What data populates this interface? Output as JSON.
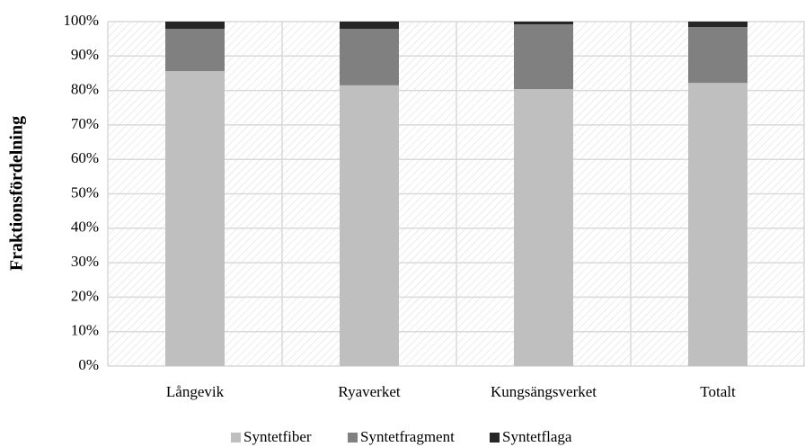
{
  "chart_data": {
    "type": "stacked_bar",
    "y_label": "Fraktionsfördelning",
    "categories": [
      "Långevik",
      "Ryaverket",
      "Kungsängsverket",
      "Totalt"
    ],
    "series": [
      {
        "name": "Syntetfiber",
        "color": "#bfbfbf",
        "values": [
          85.6,
          81.5,
          80.4,
          82.2
        ]
      },
      {
        "name": "Syntetfragment",
        "color": "#808080",
        "values": [
          12.3,
          16.4,
          18.8,
          16.2
        ]
      },
      {
        "name": "Syntetflaga",
        "color": "#262626",
        "values": [
          2.1,
          2.1,
          0.8,
          1.6
        ]
      }
    ],
    "ylim": [
      0,
      100
    ],
    "yticks": [
      {
        "value": 0,
        "label": "0%"
      },
      {
        "value": 10,
        "label": "10%"
      },
      {
        "value": 20,
        "label": "20%"
      },
      {
        "value": 30,
        "label": "30%"
      },
      {
        "value": 40,
        "label": "40%"
      },
      {
        "value": 50,
        "label": "50%"
      },
      {
        "value": 60,
        "label": "60%"
      },
      {
        "value": 70,
        "label": "70%"
      },
      {
        "value": 80,
        "label": "80%"
      },
      {
        "value": 90,
        "label": "90%"
      },
      {
        "value": 100,
        "label": "100%"
      }
    ],
    "grid": true,
    "legend": "bottom"
  }
}
